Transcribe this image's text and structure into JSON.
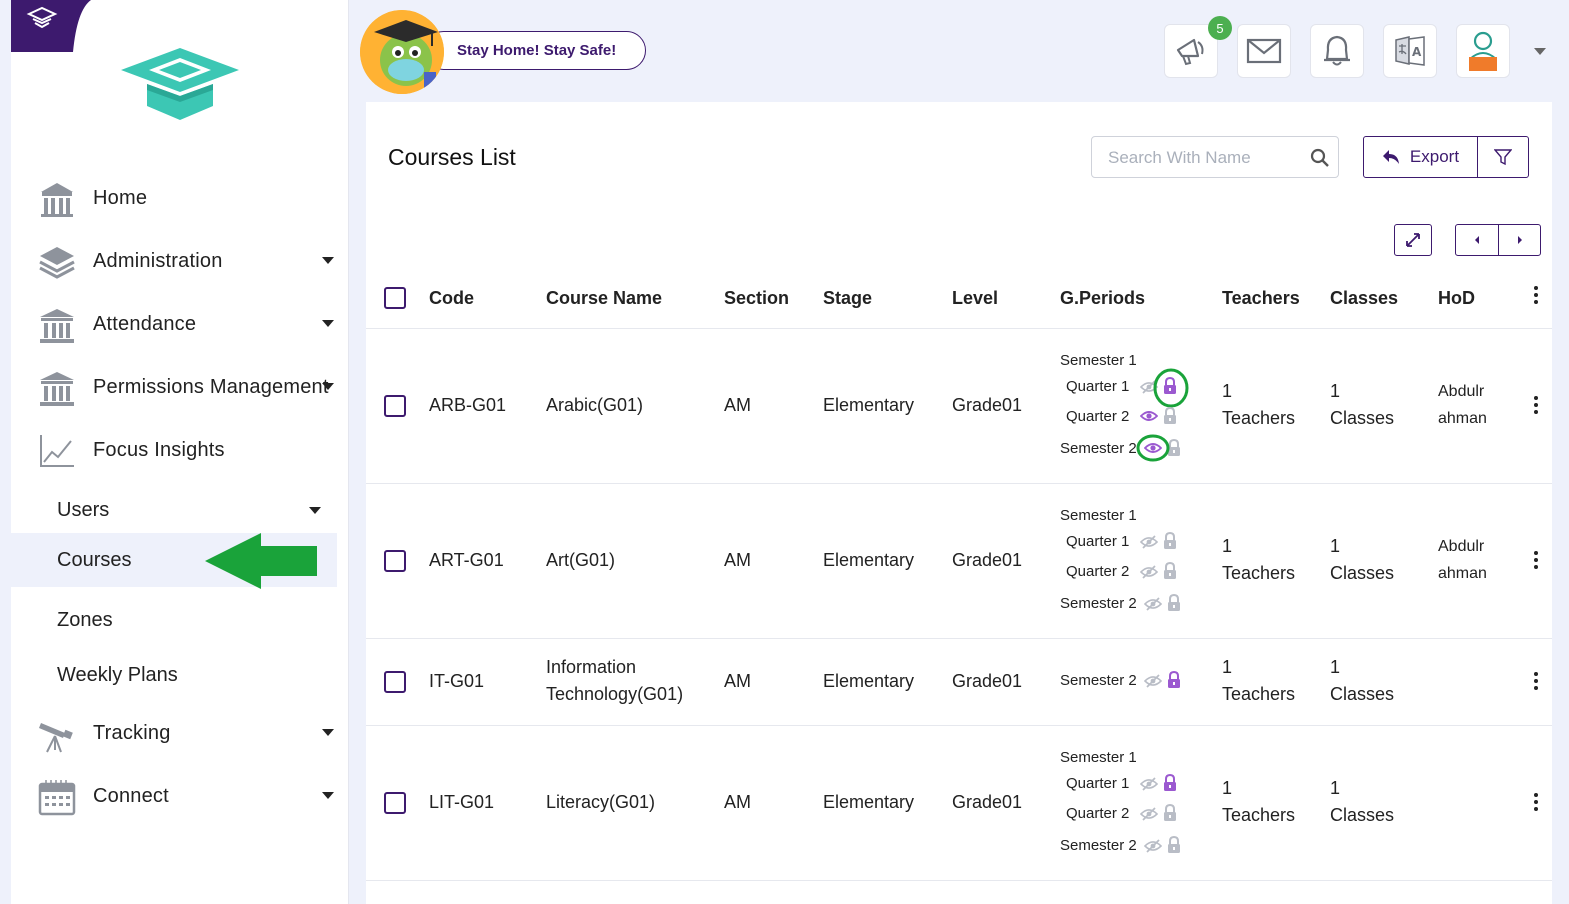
{
  "banner": {
    "text": "Stay Home! Stay Safe!"
  },
  "notifications": {
    "count": "5"
  },
  "topbar": {
    "icons": [
      "megaphone-icon",
      "mail-icon",
      "bell-icon",
      "translate-icon",
      "profile-icon"
    ]
  },
  "sidebar": {
    "items": [
      {
        "label": "Home",
        "icon": "home-building-icon"
      },
      {
        "label": "Administration",
        "icon": "layers-icon"
      },
      {
        "label": "Attendance",
        "icon": "institution-icon"
      },
      {
        "label": "Permissions Management",
        "icon": "institution-icon"
      },
      {
        "label": "Focus Insights",
        "icon": "chart-line-icon"
      },
      {
        "label": "Tracking",
        "icon": "telescope-icon"
      },
      {
        "label": "Connect",
        "icon": "calendar-icon"
      }
    ],
    "subitems": [
      {
        "label": "Users"
      },
      {
        "label": "Courses"
      },
      {
        "label": "Zones"
      },
      {
        "label": "Weekly Plans"
      }
    ]
  },
  "page": {
    "title": "Courses List",
    "search_placeholder": "Search With Name",
    "export_label": "Export"
  },
  "table": {
    "headers": [
      "Code",
      "Course Name",
      "Section",
      "Stage",
      "Level",
      "G.Periods",
      "Teachers",
      "Classes",
      "HoD"
    ],
    "rows": [
      {
        "code": "ARB-G01",
        "name1": "Arabic(G01)",
        "name2": "",
        "section": "AM",
        "stage": "Elementary",
        "level": "Grade01",
        "periods": [
          {
            "label": "Semester 1"
          },
          {
            "label": "Quarter 1",
            "visible": false,
            "locked": true
          },
          {
            "label": "Quarter 2",
            "visible": true,
            "locked": false
          },
          {
            "label": "Semester 2",
            "visible": true,
            "locked": false
          }
        ],
        "teachers_n": "1",
        "teachers_l": "Teachers",
        "classes_n": "1",
        "classes_l": "Classes",
        "hod1": "Abdulr",
        "hod2": "ahman"
      },
      {
        "code": "ART-G01",
        "name1": "Art(G01)",
        "name2": "",
        "section": "AM",
        "stage": "Elementary",
        "level": "Grade01",
        "periods": [
          {
            "label": "Semester 1"
          },
          {
            "label": "Quarter 1",
            "visible": false,
            "locked": false
          },
          {
            "label": "Quarter 2",
            "visible": false,
            "locked": false
          },
          {
            "label": "Semester 2",
            "visible": false,
            "locked": false
          }
        ],
        "teachers_n": "1",
        "teachers_l": "Teachers",
        "classes_n": "1",
        "classes_l": "Classes",
        "hod1": "Abdulr",
        "hod2": "ahman"
      },
      {
        "code": "IT-G01",
        "name1": "Information",
        "name2": "Technology(G01)",
        "section": "AM",
        "stage": "Elementary",
        "level": "Grade01",
        "periods": [
          {
            "label": "Semester 2",
            "visible": false,
            "locked": true
          }
        ],
        "teachers_n": "1",
        "teachers_l": "Teachers",
        "classes_n": "1",
        "classes_l": "Classes",
        "hod1": "",
        "hod2": ""
      },
      {
        "code": "LIT-G01",
        "name1": "Literacy(G01)",
        "name2": "",
        "section": "AM",
        "stage": "Elementary",
        "level": "Grade01",
        "periods": [
          {
            "label": "Semester 1"
          },
          {
            "label": "Quarter 1",
            "visible": false,
            "locked": true
          },
          {
            "label": "Quarter 2",
            "visible": false,
            "locked": false
          },
          {
            "label": "Semester 2",
            "visible": false,
            "locked": false
          }
        ],
        "teachers_n": "1",
        "teachers_l": "Teachers",
        "classes_n": "1",
        "classes_l": "Classes",
        "hod1": "",
        "hod2": ""
      }
    ]
  },
  "colors": {
    "primary": "#3d1a6e",
    "accent": "#9b59d0",
    "annotation": "#1aa33a",
    "teal": "#3cc7b4"
  }
}
